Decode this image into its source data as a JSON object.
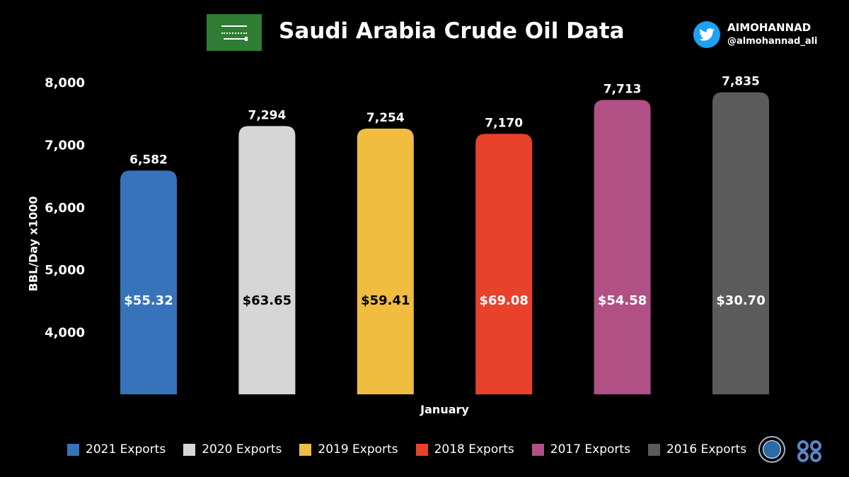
{
  "header": {
    "title": "Saudi Arabia Crude Oil Data",
    "twitter_name": "AIMOHANNAD",
    "twitter_handle": "@almohannad_ali"
  },
  "colors": {
    "background": "#000000",
    "twitter": "#1da1f2",
    "flag": "#2e7d32"
  },
  "chart_data": {
    "type": "bar",
    "title": "Saudi Arabia Crude Oil Data",
    "xlabel": "January",
    "ylabel": "BBL/Day x1000",
    "ylim": [
      3000,
      8000
    ],
    "yticks": [
      4000,
      5000,
      6000,
      7000,
      8000
    ],
    "ytick_labels": [
      "4,000",
      "5,000",
      "6,000",
      "7,000",
      "8,000"
    ],
    "grid": false,
    "legend_position": "bottom",
    "series": [
      {
        "name": "2021 Exports",
        "value": 6582,
        "value_label": "6,582",
        "price": "$55.32",
        "color": "#3673ba",
        "price_color": "#ffffff"
      },
      {
        "name": "2020 Exports",
        "value": 7294,
        "value_label": "7,294",
        "price": "$63.65",
        "color": "#d6d6d6",
        "price_color": "#000000"
      },
      {
        "name": "2019 Exports",
        "value": 7254,
        "value_label": "7,254",
        "price": "$59.41",
        "color": "#f0bd41",
        "price_color": "#000000"
      },
      {
        "name": "2018 Exports",
        "value": 7170,
        "value_label": "7,170",
        "price": "$69.08",
        "color": "#e8422b",
        "price_color": "#ffffff"
      },
      {
        "name": "2017 Exports",
        "value": 7713,
        "value_label": "7,713",
        "price": "$54.58",
        "color": "#b05085",
        "price_color": "#ffffff"
      },
      {
        "name": "2016 Exports",
        "value": 7835,
        "value_label": "7,835",
        "price": "$30.70",
        "color": "#5b5b5b",
        "price_color": "#ffffff"
      }
    ]
  }
}
